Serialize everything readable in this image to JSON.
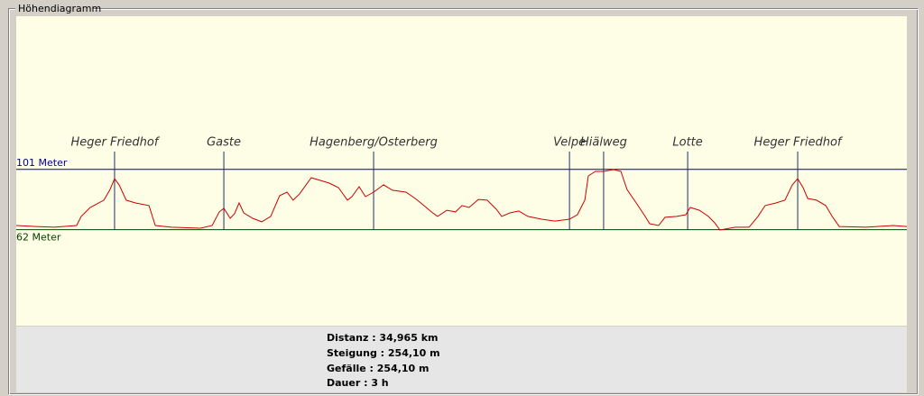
{
  "panel": {
    "title": "Höhendiagramm"
  },
  "chart_data": {
    "type": "line",
    "xlim": [
      0,
      34.965
    ],
    "ylim": [
      0,
      200
    ],
    "series": [
      {
        "color": "#cc0000",
        "x": [
          0,
          0.78,
          1.49,
          2.37,
          2.55,
          2.9,
          3.44,
          3.68,
          3.86,
          4.04,
          4.32,
          4.68,
          5.21,
          5.46,
          6.09,
          7.23,
          7.69,
          7.97,
          8.15,
          8.4,
          8.57,
          8.75,
          8.93,
          9.28,
          9.64,
          9.99,
          10.34,
          10.63,
          10.87,
          11.12,
          11.58,
          11.94,
          12.29,
          12.65,
          13.0,
          13.18,
          13.46,
          13.71,
          14.03,
          14.42,
          14.77,
          15.3,
          15.66,
          16.01,
          16.3,
          16.54,
          16.9,
          17.25,
          17.5,
          17.78,
          18.14,
          18.49,
          18.85,
          19.06,
          19.38,
          19.73,
          20.09,
          20.62,
          21.15,
          21.72,
          22.03,
          22.32,
          22.46,
          22.74,
          23.06,
          23.45,
          23.74,
          23.98,
          24.34,
          24.69,
          24.87,
          25.22,
          25.47,
          25.93,
          26.29,
          26.46,
          26.82,
          27.17,
          27.42,
          27.63,
          28.23,
          28.77,
          29.12,
          29.4,
          29.83,
          30.18,
          30.47,
          30.68,
          30.89,
          31.07,
          31.42,
          31.78,
          32.03,
          32.31,
          33.37,
          34.43,
          34.965
        ],
        "values": [
          64.7,
          64.1,
          63.6,
          64.7,
          70.6,
          76.4,
          81.1,
          88.0,
          95.0,
          91.0,
          81.1,
          79.3,
          77.6,
          64.7,
          63.6,
          63.0,
          64.7,
          73.5,
          75.8,
          69.4,
          72.3,
          79.3,
          72.9,
          69.4,
          67.1,
          70.6,
          84.0,
          86.3,
          81.1,
          85.1,
          95.6,
          93.9,
          92.1,
          89.2,
          81.1,
          83.4,
          89.8,
          83.4,
          86.3,
          91.0,
          87.5,
          86.3,
          82.2,
          77.6,
          73.5,
          70.6,
          74.6,
          73.5,
          77.6,
          76.4,
          81.6,
          81.1,
          75.2,
          70.6,
          72.9,
          74.1,
          70.6,
          68.8,
          67.6,
          68.8,
          71.7,
          81.1,
          96.8,
          99.7,
          99.7,
          100.9,
          99.7,
          88.0,
          79.3,
          70.6,
          65.9,
          64.7,
          70.0,
          70.6,
          71.7,
          76.4,
          74.6,
          70.6,
          66.5,
          61.8,
          63.6,
          63.6,
          70.6,
          77.6,
          79.3,
          81.1,
          91.0,
          95.0,
          89.2,
          82.2,
          81.1,
          77.6,
          70.6,
          64.1,
          63.6,
          64.7,
          64.1
        ]
      }
    ],
    "hlines": [
      {
        "value": 101,
        "label": "101 Meter",
        "color": "#000090"
      },
      {
        "value": 62,
        "label": "62 Meter",
        "color": "#004000"
      }
    ],
    "markers": [
      {
        "x": 3.86,
        "label": "Heger Friedhof"
      },
      {
        "x": 8.15,
        "label": "Gaste"
      },
      {
        "x": 14.03,
        "label": "Hagenberg/Osterberg"
      },
      {
        "x": 21.72,
        "label": "Velpe"
      },
      {
        "x": 23.06,
        "label": "Hiälweg"
      },
      {
        "x": 26.36,
        "label": "Lotte"
      },
      {
        "x": 30.68,
        "label": "Heger Friedhof"
      }
    ],
    "marker_color": "#203060"
  },
  "stats": [
    "Distanz : 34,965 km",
    "Steigung : 254,10 m",
    "Gefälle : 254,10 m",
    "Dauer : 3 h"
  ]
}
